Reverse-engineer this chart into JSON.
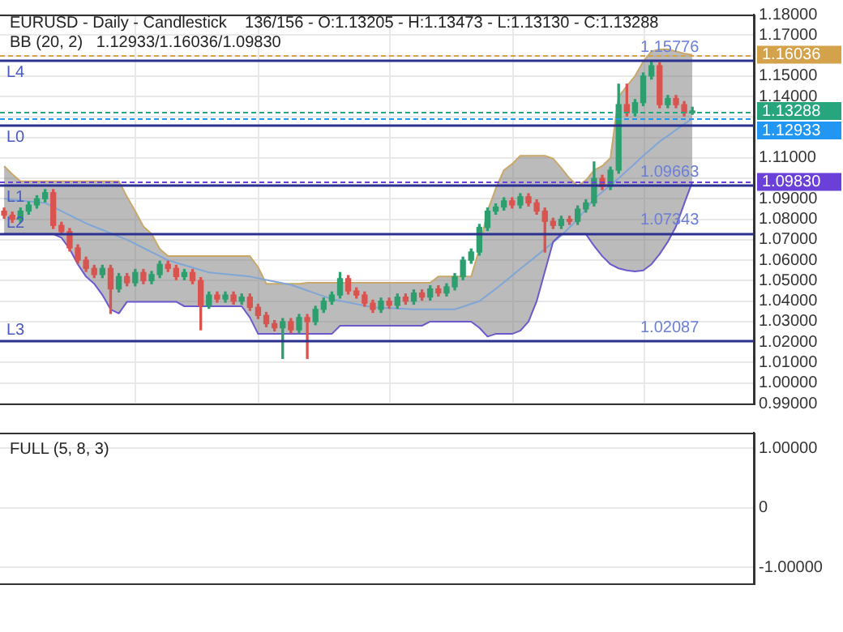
{
  "chart_data": [
    {
      "type": "candlestick",
      "title": "EURUSD - Daily - Candlestick    136/156 - O:1.13205 - H:1.13473 - L:1.13130 - C:1.13288",
      "subtitle": "BB (20, 2)   1.12933/1.16036/1.09830",
      "categories": [
        null,
        null,
        null,
        null,
        null,
        null,
        null,
        null,
        null,
        null,
        null,
        null,
        null,
        null,
        null,
        null,
        null,
        null,
        null,
        null,
        null,
        null,
        null,
        null,
        null,
        null,
        null,
        null,
        null,
        null,
        null,
        null,
        null,
        null,
        null,
        null,
        null,
        null,
        null,
        null,
        null,
        null,
        null,
        null,
        null,
        null,
        null,
        null,
        null,
        null,
        null,
        null,
        null,
        null,
        null,
        null,
        null,
        null,
        null,
        null,
        null,
        null,
        null,
        null,
        null,
        null,
        null,
        null,
        null,
        null,
        null,
        null,
        null,
        null,
        null,
        null,
        null,
        null,
        null,
        null,
        null,
        null,
        null,
        null,
        null,
        null,
        null,
        null,
        null,
        null,
        null,
        null
      ],
      "ohlc": [
        [
          1.084,
          1.0855,
          1.0805,
          1.082
        ],
        [
          1.082,
          1.0835,
          1.0785,
          1.08
        ],
        [
          1.08,
          1.0855,
          1.0785,
          1.084
        ],
        [
          1.084,
          1.0885,
          1.0825,
          1.087
        ],
        [
          1.087,
          1.0915,
          1.0855,
          1.09
        ],
        [
          1.09,
          1.0945,
          1.0885,
          1.093
        ],
        [
          1.093,
          1.0945,
          1.0755,
          1.077
        ],
        [
          1.077,
          1.0785,
          1.0725,
          1.074
        ],
        [
          1.074,
          1.0755,
          1.0645,
          1.066
        ],
        [
          1.066,
          1.0675,
          1.0585,
          1.06
        ],
        [
          1.06,
          1.0615,
          1.0545,
          1.056
        ],
        [
          1.056,
          1.0575,
          1.0515,
          1.053
        ],
        [
          1.053,
          1.0575,
          1.0515,
          1.056
        ],
        [
          1.056,
          1.0575,
          1.034,
          1.046
        ],
        [
          1.046,
          1.0535,
          1.0445,
          1.052
        ],
        [
          1.052,
          1.0535,
          1.0475,
          1.049
        ],
        [
          1.049,
          1.0555,
          1.0475,
          1.054
        ],
        [
          1.054,
          1.0555,
          1.0485,
          1.05
        ],
        [
          1.05,
          1.0545,
          1.0485,
          1.053
        ],
        [
          1.053,
          1.0595,
          1.0515,
          1.058
        ],
        [
          1.058,
          1.0595,
          1.0545,
          1.056
        ],
        [
          1.056,
          1.0575,
          1.0505,
          1.052
        ],
        [
          1.052,
          1.0555,
          1.0505,
          1.054
        ],
        [
          1.054,
          1.0555,
          1.0485,
          1.05
        ],
        [
          1.05,
          1.0515,
          1.026,
          1.038
        ],
        [
          1.038,
          1.0445,
          1.0365,
          1.043
        ],
        [
          1.043,
          1.0445,
          1.0395,
          1.041
        ],
        [
          1.041,
          1.0445,
          1.0395,
          1.043
        ],
        [
          1.043,
          1.0445,
          1.0385,
          1.04
        ],
        [
          1.04,
          1.0435,
          1.0385,
          1.042
        ],
        [
          1.042,
          1.0435,
          1.0355,
          1.037
        ],
        [
          1.037,
          1.0385,
          1.0315,
          1.033
        ],
        [
          1.033,
          1.0345,
          1.0275,
          1.029
        ],
        [
          1.029,
          1.0305,
          1.0255,
          1.027
        ],
        [
          1.027,
          1.0315,
          1.012,
          1.03
        ],
        [
          1.03,
          1.0315,
          1.0245,
          1.026
        ],
        [
          1.026,
          1.0335,
          1.0245,
          1.032
        ],
        [
          1.032,
          1.0335,
          1.012,
          1.03
        ],
        [
          1.03,
          1.0375,
          1.0285,
          1.036
        ],
        [
          1.036,
          1.0415,
          1.0345,
          1.04
        ],
        [
          1.04,
          1.0445,
          1.0385,
          1.043
        ],
        [
          1.043,
          1.054,
          1.0415,
          1.051
        ],
        [
          1.051,
          1.0525,
          1.0435,
          1.045
        ],
        [
          1.045,
          1.0465,
          1.0415,
          1.043
        ],
        [
          1.043,
          1.0445,
          1.0375,
          1.039
        ],
        [
          1.039,
          1.0405,
          1.0345,
          1.036
        ],
        [
          1.036,
          1.0415,
          1.0345,
          1.04
        ],
        [
          1.04,
          1.0415,
          1.0365,
          1.038
        ],
        [
          1.038,
          1.0435,
          1.0365,
          1.042
        ],
        [
          1.042,
          1.0435,
          1.0385,
          1.04
        ],
        [
          1.04,
          1.0455,
          1.0385,
          1.044
        ],
        [
          1.044,
          1.0455,
          1.0405,
          1.042
        ],
        [
          1.042,
          1.0475,
          1.0405,
          1.046
        ],
        [
          1.046,
          1.0475,
          1.0425,
          1.044
        ],
        [
          1.044,
          1.0485,
          1.0425,
          1.047
        ],
        [
          1.047,
          1.0535,
          1.0455,
          1.052
        ],
        [
          1.052,
          1.0615,
          1.0505,
          1.06
        ],
        [
          1.06,
          1.0655,
          1.0585,
          1.064
        ],
        [
          1.064,
          1.0775,
          1.0625,
          1.076
        ],
        [
          1.076,
          1.0855,
          1.0745,
          1.084
        ],
        [
          1.084,
          1.0875,
          1.0825,
          1.086
        ],
        [
          1.086,
          1.0905,
          1.0845,
          1.089
        ],
        [
          1.089,
          1.0905,
          1.0855,
          1.087
        ],
        [
          1.087,
          1.0925,
          1.0855,
          1.091
        ],
        [
          1.091,
          1.0925,
          1.0865,
          1.088
        ],
        [
          1.088,
          1.0895,
          1.0825,
          1.084
        ],
        [
          1.084,
          1.0855,
          1.064,
          1.079
        ],
        [
          1.079,
          1.0805,
          1.0755,
          1.077
        ],
        [
          1.077,
          1.0815,
          1.0755,
          1.08
        ],
        [
          1.08,
          1.0815,
          1.0775,
          1.079
        ],
        [
          1.079,
          1.0865,
          1.0775,
          1.085
        ],
        [
          1.085,
          1.0895,
          1.0835,
          1.088
        ],
        [
          1.088,
          1.108,
          1.0865,
          1.1
        ],
        [
          1.1,
          1.1015,
          1.0945,
          1.096
        ],
        [
          1.096,
          1.1055,
          1.0945,
          1.104
        ],
        [
          1.104,
          1.146,
          1.1025,
          1.136
        ],
        [
          1.136,
          1.146,
          1.1305,
          1.132
        ],
        [
          1.132,
          1.1385,
          1.1305,
          1.137
        ],
        [
          1.137,
          1.1515,
          1.1355,
          1.15
        ],
        [
          1.15,
          1.1575,
          1.1485,
          1.155
        ],
        [
          1.155,
          1.1565,
          1.1345,
          1.136
        ],
        [
          1.136,
          1.1405,
          1.1345,
          1.139
        ],
        [
          1.139,
          1.1405,
          1.1345,
          1.136
        ],
        [
          1.136,
          1.1375,
          1.1305,
          1.132
        ],
        [
          1.13205,
          1.13473,
          1.1313,
          1.13288
        ],
        null,
        null,
        null,
        null,
        null,
        null,
        null
      ],
      "series": [
        {
          "type": "area",
          "color": "#c9a86a",
          "values": [
            1.106,
            1.102,
            1.0986,
            1.0986,
            1.0986,
            1.0986,
            1.0986,
            1.0986,
            1.0986,
            1.0986,
            1.0986,
            1.0986,
            1.0986,
            1.0986,
            1.0986,
            1.091,
            1.084,
            1.0765,
            1.0728,
            1.0655,
            1.062,
            1.062,
            1.062,
            1.062,
            1.062,
            1.062,
            1.062,
            1.062,
            1.062,
            1.062,
            1.062,
            1.0566,
            1.0485,
            1.0485,
            1.0485,
            1.0485,
            1.0485,
            1.049,
            1.049,
            1.049,
            1.049,
            1.049,
            1.049,
            1.049,
            1.049,
            1.049,
            1.049,
            1.049,
            1.049,
            1.049,
            1.049,
            1.049,
            1.049,
            1.052,
            1.052,
            1.052,
            1.052,
            1.052,
            1.0655,
            1.084,
            1.095,
            1.104,
            1.107,
            1.111,
            1.111,
            1.111,
            1.111,
            1.1097,
            1.105,
            1.1,
            1.0963,
            1.099,
            1.104,
            1.106,
            1.11,
            1.14,
            1.145,
            1.15,
            1.157,
            1.162,
            1.163,
            1.163,
            1.162,
            1.161,
            1.16036,
            null,
            null,
            null,
            null,
            null,
            null,
            null
          ]
        },
        {
          "type": "line",
          "color": "#6a5acd",
          "values": [
            1.0728,
            1.0728,
            1.0728,
            1.0728,
            1.0728,
            1.0728,
            1.0728,
            1.071,
            1.0655,
            1.058,
            1.052,
            1.0485,
            1.043,
            1.036,
            1.034,
            1.0397,
            1.0397,
            1.0397,
            1.0397,
            1.0397,
            1.0397,
            1.0397,
            1.0375,
            1.0375,
            1.0375,
            1.0375,
            1.0375,
            1.0375,
            1.0375,
            1.0375,
            1.032,
            1.024,
            1.024,
            1.024,
            1.024,
            1.024,
            1.024,
            1.024,
            1.024,
            1.024,
            1.024,
            1.028,
            1.028,
            1.028,
            1.028,
            1.028,
            1.028,
            1.028,
            1.028,
            1.028,
            1.028,
            1.028,
            1.03,
            1.03,
            1.03,
            1.03,
            1.03,
            1.03,
            1.027,
            1.0227,
            1.024,
            1.024,
            1.024,
            1.0256,
            1.03,
            1.04,
            1.0545,
            1.069,
            1.0728,
            1.0728,
            1.0728,
            1.0728,
            1.067,
            1.062,
            1.058,
            1.056,
            1.055,
            1.0545,
            1.055,
            1.058,
            1.063,
            1.069,
            1.0765,
            1.0876,
            1.0983,
            null,
            null,
            null,
            null,
            null,
            null,
            null
          ]
        },
        {
          "type": "line",
          "color": "#7fa6d6",
          "values": [
            1.09,
            1.0896,
            1.0892,
            1.0888,
            1.0884,
            1.088,
            1.086,
            1.084,
            1.082,
            1.08,
            1.078,
            1.0764,
            1.0748,
            1.0732,
            1.0716,
            1.07,
            1.068,
            1.066,
            1.064,
            1.062,
            1.06,
            1.0588,
            1.0576,
            1.0564,
            1.0552,
            1.054,
            1.0536,
            1.0532,
            1.0528,
            1.0524,
            1.052,
            1.0512,
            1.0504,
            1.0496,
            1.0488,
            1.048,
            1.0466,
            1.0452,
            1.0438,
            1.0424,
            1.041,
            1.0402,
            1.0394,
            1.0386,
            1.0378,
            1.037,
            1.0368,
            1.0366,
            1.0364,
            1.0362,
            1.036,
            1.036,
            1.036,
            1.036,
            1.036,
            1.036,
            1.0373,
            1.0387,
            1.04,
            1.043,
            1.046,
            1.0492,
            1.0525,
            1.0558,
            1.059,
            1.0622,
            1.0655,
            1.0688,
            1.072,
            1.076,
            1.08,
            1.085,
            1.09,
            1.0933,
            1.0967,
            1.1,
            1.1037,
            1.1073,
            1.111,
            1.1145,
            1.118,
            1.1208,
            1.1237,
            1.1265,
            1.12933,
            null,
            null,
            null,
            null,
            null,
            null,
            null
          ]
        }
      ],
      "ylim": [
        0.99,
        1.18
      ],
      "yticks": [
        {
          "value": 0.99,
          "label": "0.99000"
        },
        {
          "value": 1.0,
          "label": "1.00000"
        },
        {
          "value": 1.01,
          "label": "1.01000"
        },
        {
          "value": 1.02,
          "label": "1.02000"
        },
        {
          "value": 1.03,
          "label": "1.03000"
        },
        {
          "value": 1.04,
          "label": "1.04000"
        },
        {
          "value": 1.05,
          "label": "1.05000"
        },
        {
          "value": 1.06,
          "label": "1.06000"
        },
        {
          "value": 1.07,
          "label": "1.07000"
        },
        {
          "value": 1.08,
          "label": "1.08000"
        },
        {
          "value": 1.09,
          "label": "1.09000"
        },
        {
          "value": 1.1,
          "label": null
        },
        {
          "value": 1.11,
          "label": "1.11000"
        },
        {
          "value": 1.12,
          "label": null
        },
        {
          "value": 1.13,
          "label": null
        },
        {
          "value": 1.14,
          "label": "1.14000"
        },
        {
          "value": 1.15,
          "label": "1.15000"
        },
        {
          "value": 1.16,
          "label": null
        },
        {
          "value": 1.17,
          "label": "1.17000"
        },
        {
          "value": 1.18,
          "label": "1.18000"
        }
      ],
      "ref_lines": [
        {
          "axis": "y",
          "value": 1.15776,
          "label": "L4",
          "color": "#2c318f"
        },
        {
          "axis": "y",
          "value": 1.1261,
          "label": "L0",
          "color": "#2c318f"
        },
        {
          "axis": "y",
          "value": 1.09663,
          "label": "L1",
          "color": "#2c318f"
        },
        {
          "axis": "y",
          "value": 1.07343,
          "label": "L2",
          "color": "#2c318f"
        },
        {
          "axis": "y",
          "value": 1.02087,
          "label": "L3",
          "color": "#2c318f"
        },
        {
          "axis": "y",
          "value": 1.16036,
          "label": "1.16036",
          "color": "#d4a24a",
          "line_style": "dashed"
        },
        {
          "axis": "y",
          "value": 1.13288,
          "label": "1.13288",
          "color": "#27a57d",
          "line_style": "dashed"
        },
        {
          "axis": "y",
          "value": 1.12933,
          "label": "1.12933",
          "color": "#2196f3",
          "line_style": "dashed"
        },
        {
          "axis": "y",
          "value": 1.0983,
          "label": "1.09830",
          "color": "#6a40d8",
          "line_style": "dashed"
        }
      ],
      "annotations": [
        {
          "text": "1.15776",
          "y": 1.15776
        },
        {
          "text": "1.09663",
          "y": 1.09663
        },
        {
          "text": "1.07343",
          "y": 1.07343
        },
        {
          "text": "1.02087",
          "y": 1.02087
        }
      ],
      "grid": true,
      "tick_labels": "y"
    },
    {
      "type": "line",
      "title": "FULL (5, 8, 3)",
      "categories": [
        null,
        null,
        null,
        null,
        null,
        null,
        null,
        null,
        null,
        null,
        null,
        null,
        null,
        null,
        null,
        null,
        null,
        null,
        null,
        null,
        null,
        null,
        null,
        null,
        null,
        null,
        null,
        null,
        null,
        null,
        null,
        null,
        null,
        null,
        null,
        null,
        null,
        null,
        null,
        null,
        null,
        null,
        null,
        null,
        null,
        null,
        null,
        null,
        null,
        null,
        null,
        null,
        null,
        null,
        null,
        null,
        null,
        null,
        null,
        null,
        null,
        null,
        null,
        null,
        null,
        null,
        null,
        null,
        null,
        null,
        null,
        null,
        null,
        null,
        null,
        null,
        null,
        null,
        null,
        null,
        null,
        null,
        null,
        null,
        null,
        null,
        null,
        null,
        null,
        null,
        null,
        null
      ],
      "values": [
        null,
        null,
        null,
        null,
        null,
        null,
        null,
        null,
        null,
        null,
        null,
        null,
        null,
        null,
        null,
        null,
        null,
        null,
        null,
        null,
        null,
        null,
        null,
        null,
        null,
        null,
        null,
        null,
        null,
        null,
        null,
        null,
        null,
        null,
        null,
        null,
        null,
        null,
        null,
        null,
        null,
        null,
        null,
        null,
        null,
        null,
        null,
        null,
        null,
        null,
        null,
        null,
        null,
        null,
        null,
        null,
        null,
        null,
        null,
        null,
        null,
        null,
        null,
        null,
        null,
        null,
        null,
        null,
        null,
        null,
        null,
        null,
        null,
        null,
        null,
        null,
        null,
        null,
        null,
        null,
        null,
        null,
        null,
        null,
        null,
        null,
        null,
        null,
        null,
        null,
        null,
        null
      ],
      "ylim": [
        -1.27,
        1.26
      ],
      "yticks": [
        {
          "value": 1,
          "label": "1.00000"
        },
        {
          "value": 0,
          "label": "0"
        },
        {
          "value": -1,
          "label": "-1.00000"
        }
      ],
      "grid": "y",
      "tick_labels": "y"
    }
  ]
}
